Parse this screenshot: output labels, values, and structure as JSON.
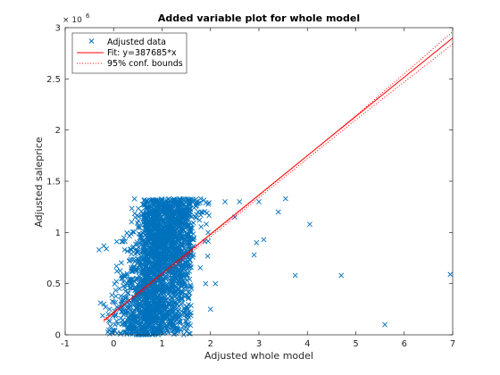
{
  "chart_data": {
    "type": "scatter",
    "title": "Added variable plot for whole model",
    "xlabel": "Adjusted whole model",
    "ylabel": "Adjusted saleprice",
    "xlim": [
      -1,
      7
    ],
    "ylim": [
      0,
      3000000
    ],
    "x_ticks": [
      -1,
      0,
      1,
      2,
      3,
      4,
      5,
      6,
      7
    ],
    "y_ticks": [
      0,
      500000,
      1000000,
      1500000,
      2000000,
      2500000,
      3000000
    ],
    "y_tick_labels": [
      "0",
      "0.5",
      "1",
      "1.5",
      "2",
      "2.5",
      "3"
    ],
    "y_exponent_base": "× 10",
    "y_exponent_power": "6",
    "grid": false,
    "legend_position": "top-left",
    "colors": {
      "data": "#0072BD",
      "fit": "#FF0000",
      "conf": "#FF0000"
    },
    "series": [
      {
        "name": "Adjusted data",
        "kind": "scatter",
        "marker": "x",
        "cluster": {
          "x_core": [
            0.6,
            1.6
          ],
          "x_spread": [
            -0.3,
            2.0
          ],
          "y_range": [
            0,
            1330000
          ]
        },
        "points": [
          [
            -0.3,
            830000
          ],
          [
            -0.2,
            870000
          ],
          [
            -0.15,
            840000
          ],
          [
            -0.2,
            300000
          ],
          [
            -0.1,
            140000
          ],
          [
            1.9,
            500000
          ],
          [
            2.0,
            250000
          ],
          [
            2.1,
            500000
          ],
          [
            1.95,
            1000000
          ],
          [
            2.3,
            1300000
          ],
          [
            2.5,
            1150000
          ],
          [
            2.6,
            1300000
          ],
          [
            2.9,
            780000
          ],
          [
            2.95,
            900000
          ],
          [
            3.1,
            930000
          ],
          [
            3.0,
            1300000
          ],
          [
            3.4,
            1200000
          ],
          [
            3.55,
            1330000
          ],
          [
            3.75,
            580000
          ],
          [
            4.05,
            1080000
          ],
          [
            4.7,
            580000
          ],
          [
            5.6,
            100000
          ],
          [
            6.95,
            590000
          ]
        ]
      },
      {
        "name": "Fit: y=387685*x",
        "kind": "line",
        "style": "solid",
        "x": [
          -0.2,
          7.0
        ],
        "y": [
          140000,
          2900000
        ]
      },
      {
        "name": "95% conf. bounds",
        "kind": "line",
        "style": "dotted",
        "x": [
          -0.2,
          1.0,
          3.0,
          5.0,
          7.0
        ],
        "upper": [
          150000,
          590000,
          1360000,
          2140000,
          2960000
        ],
        "lower": [
          130000,
          570000,
          1340000,
          2100000,
          2840000
        ]
      }
    ]
  }
}
